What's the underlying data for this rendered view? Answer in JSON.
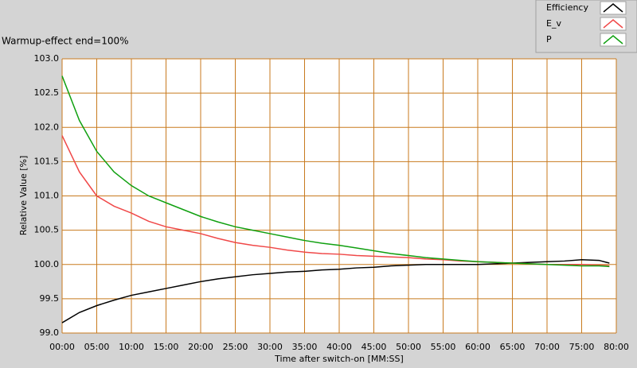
{
  "chart_data": {
    "type": "line",
    "title": "Warmup-effect end=100%",
    "x_label": "Time after switch-on [MM:SS]",
    "y_label": "Relative Value [%]",
    "x": [
      0,
      2.5,
      5,
      7.5,
      10,
      12.5,
      15,
      17.5,
      20,
      22.5,
      25,
      27.5,
      30,
      32.5,
      35,
      37.5,
      40,
      42.5,
      45,
      47.5,
      50,
      52.5,
      55,
      57.5,
      60,
      62.5,
      65,
      67.5,
      70,
      72.5,
      75,
      77.5,
      79
    ],
    "series": [
      {
        "name": "Efficiency",
        "color": "#000000",
        "values": [
          99.15,
          99.3,
          99.4,
          99.48,
          99.55,
          99.6,
          99.65,
          99.7,
          99.75,
          99.79,
          99.82,
          99.85,
          99.87,
          99.89,
          99.9,
          99.92,
          99.93,
          99.95,
          99.96,
          99.98,
          99.99,
          100.0,
          100.0,
          100.0,
          100.0,
          100.01,
          100.02,
          100.03,
          100.04,
          100.05,
          100.07,
          100.06,
          100.02
        ]
      },
      {
        "name": "E_v",
        "color": "#f04848",
        "values": [
          101.88,
          101.35,
          101.0,
          100.85,
          100.75,
          100.63,
          100.55,
          100.5,
          100.45,
          100.38,
          100.32,
          100.28,
          100.25,
          100.21,
          100.18,
          100.16,
          100.15,
          100.13,
          100.12,
          100.11,
          100.1,
          100.08,
          100.07,
          100.05,
          100.04,
          100.03,
          100.02,
          100.01,
          100.0,
          100.0,
          100.0,
          99.99,
          99.98
        ]
      },
      {
        "name": "P",
        "color": "#10a010",
        "values": [
          102.75,
          102.1,
          101.65,
          101.35,
          101.15,
          101.0,
          100.9,
          100.8,
          100.7,
          100.62,
          100.55,
          100.5,
          100.45,
          100.4,
          100.35,
          100.31,
          100.28,
          100.24,
          100.2,
          100.16,
          100.13,
          100.1,
          100.08,
          100.06,
          100.04,
          100.03,
          100.02,
          100.01,
          100.0,
          99.99,
          99.98,
          99.98,
          99.97
        ]
      }
    ],
    "xlim": [
      0,
      80
    ],
    "ylim": [
      99,
      103
    ],
    "xticks": [
      {
        "value": 0,
        "label": "00:00"
      },
      {
        "value": 5,
        "label": "05:00"
      },
      {
        "value": 10,
        "label": "10:00"
      },
      {
        "value": 15,
        "label": "15:00"
      },
      {
        "value": 20,
        "label": "20:00"
      },
      {
        "value": 25,
        "label": "25:00"
      },
      {
        "value": 30,
        "label": "30:00"
      },
      {
        "value": 35,
        "label": "35:00"
      },
      {
        "value": 40,
        "label": "40:00"
      },
      {
        "value": 45,
        "label": "45:00"
      },
      {
        "value": 50,
        "label": "50:00"
      },
      {
        "value": 55,
        "label": "55:00"
      },
      {
        "value": 60,
        "label": "60:00"
      },
      {
        "value": 65,
        "label": "65:00"
      },
      {
        "value": 70,
        "label": "70:00"
      },
      {
        "value": 75,
        "label": "75:00"
      },
      {
        "value": 80,
        "label": "80:00"
      }
    ],
    "yticks": [
      {
        "value": 99,
        "label": "99.0"
      },
      99.5,
      {
        "value": 100,
        "label": "100.0"
      },
      100.5,
      {
        "value": 101,
        "label": "101.0"
      },
      101.5,
      {
        "value": 102,
        "label": "102.0"
      },
      102.5,
      {
        "value": 103,
        "label": "103.0"
      }
    ],
    "grid": true,
    "grid_color": "#c87a1e"
  }
}
